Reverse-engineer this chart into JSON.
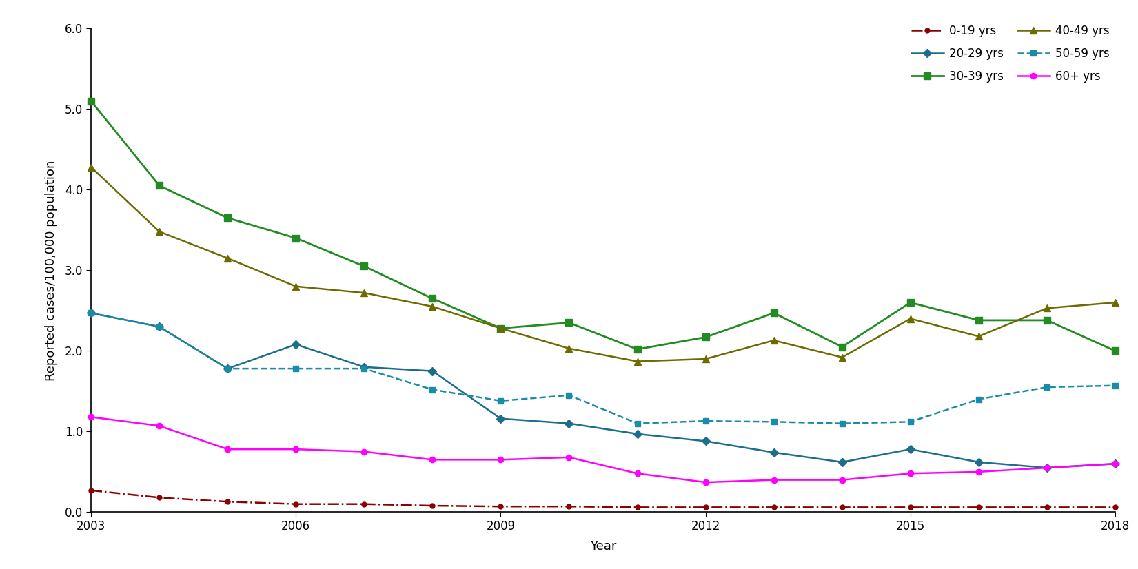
{
  "years": [
    2003,
    2004,
    2005,
    2006,
    2007,
    2008,
    2009,
    2010,
    2011,
    2012,
    2013,
    2014,
    2015,
    2016,
    2017,
    2018
  ],
  "series": {
    "0-19 yrs": {
      "values": [
        0.27,
        0.18,
        0.13,
        0.1,
        0.1,
        0.08,
        0.07,
        0.07,
        0.06,
        0.06,
        0.06,
        0.06,
        0.06,
        0.06,
        0.06,
        0.06
      ],
      "color": "#8B0000",
      "marker": "o",
      "linestyle": "-.",
      "linewidth": 1.8,
      "markersize": 5
    },
    "20-29 yrs": {
      "values": [
        2.47,
        2.3,
        1.78,
        2.08,
        1.8,
        1.75,
        1.16,
        1.1,
        0.97,
        0.88,
        0.74,
        0.62,
        0.78,
        0.62,
        0.55,
        0.6
      ],
      "color": "#1C6E8A",
      "marker": "D",
      "linestyle": "-",
      "linewidth": 1.8,
      "markersize": 6
    },
    "30-39 yrs": {
      "values": [
        5.1,
        4.05,
        3.65,
        3.4,
        3.05,
        2.65,
        2.28,
        2.35,
        2.02,
        2.17,
        2.47,
        2.05,
        2.6,
        2.38,
        2.38,
        2.0
      ],
      "color": "#228B22",
      "marker": "s",
      "linestyle": "-",
      "linewidth": 2.0,
      "markersize": 7
    },
    "40-49 yrs": {
      "values": [
        4.28,
        3.48,
        3.15,
        2.8,
        2.72,
        2.55,
        2.28,
        2.03,
        1.87,
        1.9,
        2.13,
        1.92,
        2.4,
        2.18,
        2.53,
        2.6
      ],
      "color": "#6B6B00",
      "marker": "^",
      "linestyle": "-",
      "linewidth": 1.8,
      "markersize": 7
    },
    "50-59 yrs": {
      "values": [
        2.47,
        2.3,
        1.78,
        1.78,
        1.78,
        1.52,
        1.38,
        1.45,
        1.1,
        1.13,
        1.12,
        1.1,
        1.12,
        1.4,
        1.55,
        1.57
      ],
      "color": "#1B8CA8",
      "marker": "s",
      "linestyle": "--",
      "linewidth": 1.8,
      "markersize": 6
    },
    "60+ yrs": {
      "values": [
        1.18,
        1.07,
        0.78,
        0.78,
        0.75,
        0.65,
        0.65,
        0.68,
        0.48,
        0.37,
        0.4,
        0.4,
        0.48,
        0.5,
        0.55,
        0.6
      ],
      "color": "#FF00FF",
      "marker": "o",
      "linestyle": "-",
      "linewidth": 1.8,
      "markersize": 6
    }
  },
  "xlabel": "Year",
  "ylabel": "Reported cases/100,000 population",
  "ylim": [
    0,
    6.0
  ],
  "ytick_values": [
    0.0,
    1.0,
    2.0,
    3.0,
    4.0,
    5.0,
    6.0
  ],
  "ytick_labels": [
    "0.0",
    "1.0",
    "2.0",
    "3.0",
    "4.0",
    "5.0",
    "6.0"
  ],
  "xticks": [
    2003,
    2006,
    2009,
    2012,
    2015,
    2018
  ],
  "legend_order": [
    "0-19 yrs",
    "20-29 yrs",
    "30-39 yrs",
    "40-49 yrs",
    "50-59 yrs",
    "60+ yrs"
  ],
  "background_color": "#FFFFFF",
  "title_fontsize": 13,
  "axis_fontsize": 13,
  "tick_fontsize": 12,
  "legend_fontsize": 12
}
